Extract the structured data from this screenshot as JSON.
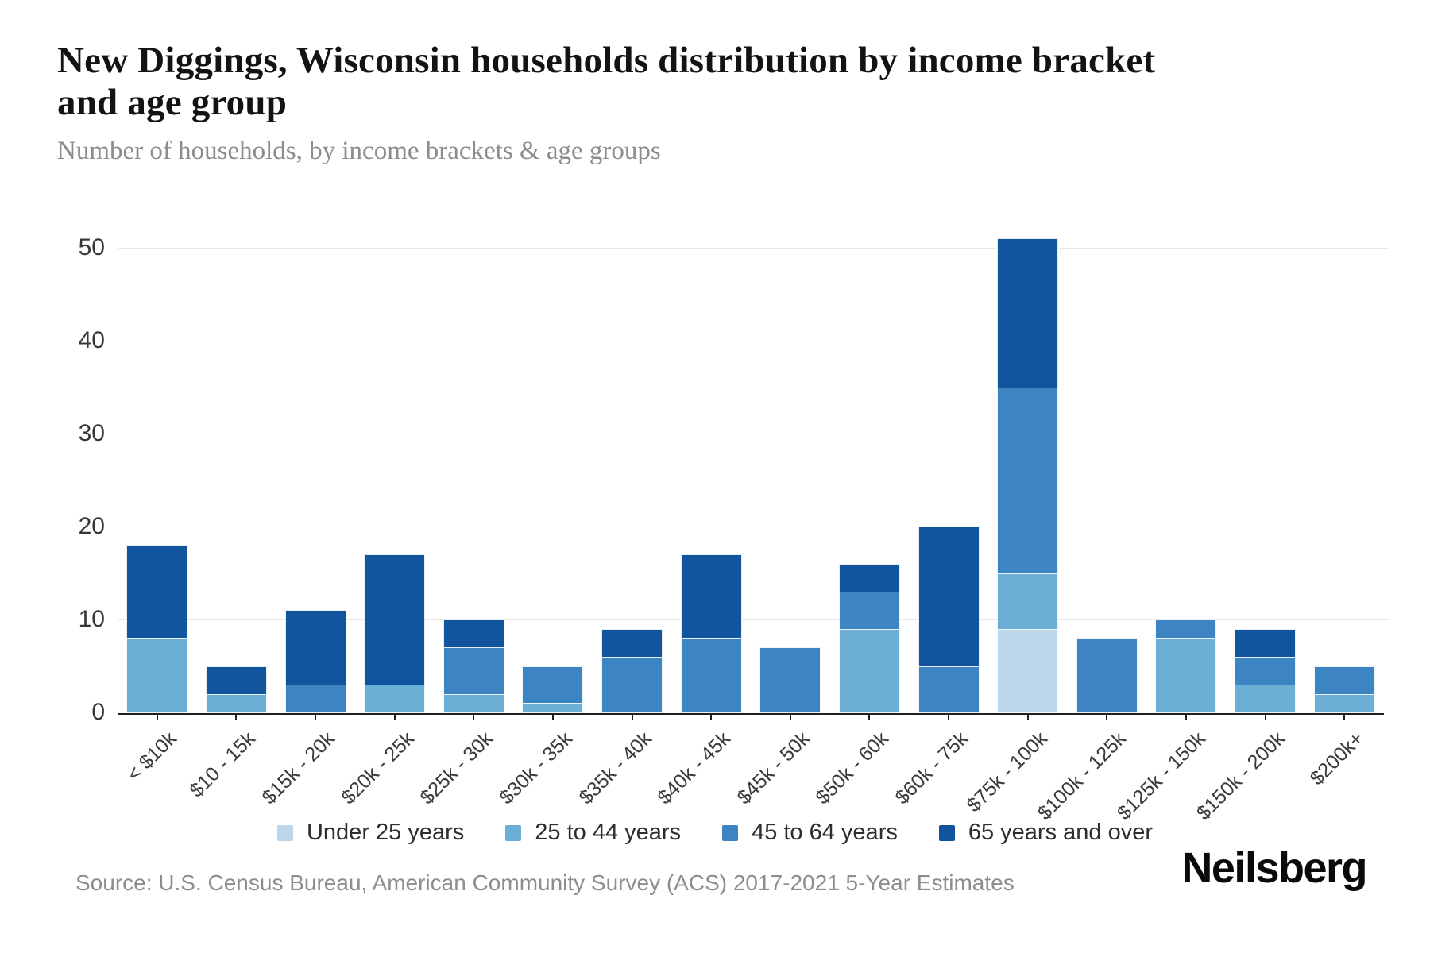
{
  "header": {
    "title": "New Diggings, Wisconsin households distribution by income bracket and age group",
    "subtitle": "Number of households, by income brackets & age groups"
  },
  "chart_data": {
    "type": "bar",
    "stacked": true,
    "title": "New Diggings, Wisconsin households distribution by income bracket and age group",
    "subtitle": "Number of households, by income brackets & age groups",
    "categories": [
      "< $10k",
      "$10 - 15k",
      "$15k - 20k",
      "$20k - 25k",
      "$25k - 30k",
      "$30k - 35k",
      "$35k - 40k",
      "$40k - 45k",
      "$45k - 50k",
      "$50k - 60k",
      "$60k - 75k",
      "$75k - 100k",
      "$100k - 125k",
      "$125k - 150k",
      "$150k - 200k",
      "$200k+"
    ],
    "series": [
      {
        "name": "Under 25 years",
        "color": "#bcd7e9",
        "values": [
          0,
          0,
          0,
          0,
          0,
          0,
          0,
          0,
          0,
          0,
          0,
          9,
          0,
          0,
          0,
          0
        ]
      },
      {
        "name": "25 to 44 years",
        "color": "#6baed6",
        "values": [
          8,
          2,
          0,
          3,
          2,
          1,
          0,
          0,
          0,
          9,
          0,
          6,
          0,
          8,
          3,
          2
        ]
      },
      {
        "name": "45 to 64 years",
        "color": "#3c84c2",
        "values": [
          0,
          0,
          3,
          0,
          5,
          4,
          6,
          8,
          7,
          4,
          5,
          20,
          8,
          2,
          3,
          3
        ]
      },
      {
        "name": "65 years and over",
        "color": "#10559e",
        "values": [
          10,
          3,
          8,
          14,
          3,
          0,
          3,
          9,
          0,
          3,
          15,
          16,
          0,
          0,
          3,
          0
        ]
      }
    ],
    "totals": [
      18,
      5,
      11,
      17,
      10,
      5,
      9,
      17,
      7,
      16,
      20,
      51,
      8,
      10,
      9,
      5
    ],
    "xlabel": "",
    "ylabel": "",
    "ylim": [
      0,
      55
    ],
    "yticks": [
      0,
      10,
      20,
      30,
      40,
      50
    ],
    "grid": true,
    "legend_position": "bottom"
  },
  "footer": {
    "source": "Source: U.S. Census Bureau, American Community Survey (ACS) 2017-2021 5-Year Estimates",
    "logo": "Neilsberg"
  }
}
